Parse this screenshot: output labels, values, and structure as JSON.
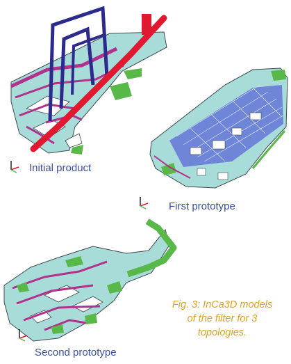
{
  "labels": {
    "initial": "Initial product",
    "first": "First prototype",
    "second": "Second prototype"
  },
  "caption": {
    "lines": [
      "Fig. 3: InCa3D models",
      "of the filter for 3",
      "topologies."
    ]
  },
  "colors": {
    "label_text": "#3a4fa0",
    "caption_text": "#e0a020",
    "plate": "#a8dcd8",
    "trace_magenta": "#b0328c",
    "trace_green": "#58b848",
    "conductor_navy": "#2c2a8c",
    "conductor_red": "#e01830",
    "mesh_blue": "#5c6ad8",
    "outline": "#3c4850"
  },
  "icons": {
    "axis_triad": "axis-triad-icon"
  }
}
